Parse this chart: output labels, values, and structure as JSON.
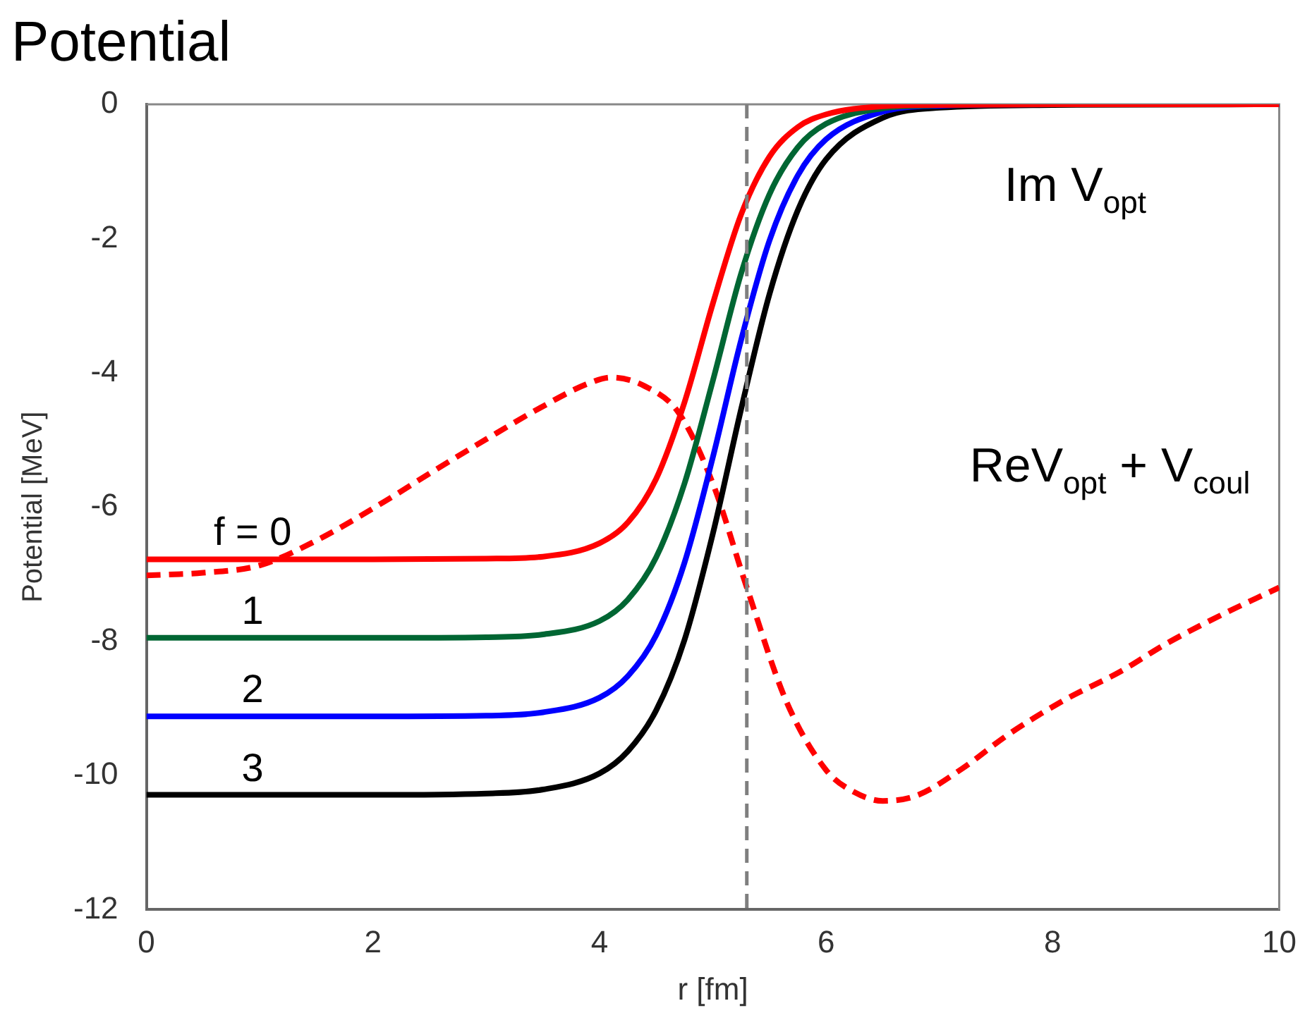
{
  "chart_data": {
    "type": "line",
    "title": "Potential",
    "xlabel": "r [fm]",
    "ylabel": "Potential [MeV]",
    "xlim": [
      0,
      10
    ],
    "xticks": [
      0,
      2,
      4,
      6,
      8,
      10
    ],
    "ylim": [
      -12,
      0
    ],
    "yticks": [
      -12,
      -10,
      -8,
      -6,
      -4,
      -2,
      0
    ],
    "marker": "none",
    "series": [
      {
        "name": "f = 0",
        "color": "#ff0000",
        "line_style": "solid",
        "x": [
          0,
          1,
          2,
          3,
          3.5,
          4,
          4.25,
          4.5,
          4.75,
          5,
          5.25,
          5.5,
          5.75,
          6,
          6.5,
          7,
          8,
          10
        ],
        "values": [
          -6.78,
          -6.78,
          -6.78,
          -6.77,
          -6.74,
          -6.54,
          -6.23,
          -5.58,
          -4.44,
          -2.97,
          -1.64,
          -0.78,
          -0.34,
          -0.15,
          -0.03,
          -0.01,
          0,
          0
        ]
      },
      {
        "name": "1",
        "color": "#006633",
        "line_style": "solid",
        "x": [
          0,
          1,
          2,
          3,
          3.5,
          4,
          4.25,
          4.5,
          4.75,
          5,
          5.25,
          5.5,
          5.75,
          6,
          6.5,
          7
        ],
        "values": [
          -7.95,
          -7.95,
          -7.95,
          -7.94,
          -7.9,
          -7.7,
          -7.38,
          -6.75,
          -5.65,
          -4.12,
          -2.52,
          -1.34,
          -0.64,
          -0.29,
          -0.06,
          -0.01
        ]
      },
      {
        "name": "2",
        "color": "#0000ff",
        "line_style": "solid",
        "x": [
          0,
          1,
          2,
          3,
          3.5,
          4,
          4.25,
          4.5,
          4.75,
          5,
          5.25,
          5.5,
          5.75,
          6,
          6.5,
          7,
          8,
          10
        ],
        "values": [
          -9.12,
          -9.12,
          -9.12,
          -9.11,
          -9.06,
          -8.84,
          -8.52,
          -7.91,
          -6.83,
          -5.26,
          -3.51,
          -2.03,
          -1.06,
          -0.52,
          -0.11,
          -0.02,
          0,
          0
        ]
      },
      {
        "name": "3",
        "color": "#000000",
        "line_style": "solid",
        "x": [
          0,
          1,
          2,
          3,
          3.5,
          4,
          4.25,
          4.5,
          4.75,
          5,
          5.25,
          5.5,
          5.75,
          6,
          6.5,
          7,
          8,
          10
        ],
        "values": [
          -10.29,
          -10.29,
          -10.29,
          -10.27,
          -10.21,
          -9.97,
          -9.64,
          -9.03,
          -7.98,
          -6.4,
          -4.54,
          -2.83,
          -1.58,
          -0.82,
          -0.2,
          -0.05,
          -0.01,
          0
        ]
      },
      {
        "name": "ReV$_{opt}$ + V$_{coul}$",
        "color": "#ff0000",
        "line_style": "dashed",
        "x": [
          0,
          0.5,
          1,
          1.5,
          2.1,
          2.5,
          3,
          3.5,
          3.9,
          4.1,
          4.4,
          4.7,
          5,
          5.3,
          5.65,
          6,
          6.25,
          6.5,
          6.8,
          7.2,
          7.6,
          8.1,
          8.6,
          9,
          9.5,
          10
        ],
        "values": [
          -7.02,
          -6.98,
          -6.87,
          -6.5,
          -5.92,
          -5.5,
          -4.99,
          -4.5,
          -4.16,
          -4.07,
          -4.2,
          -4.6,
          -5.65,
          -7.2,
          -8.9,
          -9.92,
          -10.25,
          -10.38,
          -10.3,
          -9.9,
          -9.4,
          -8.88,
          -8.45,
          -8.04,
          -7.6,
          -7.2
        ]
      }
    ],
    "ref_lines": [
      {
        "axis": "x",
        "value": 5.3,
        "color": "#7f7f7f",
        "line_style": "dashed"
      }
    ],
    "annotations": [
      "Im V$_{opt}$"
    ]
  }
}
